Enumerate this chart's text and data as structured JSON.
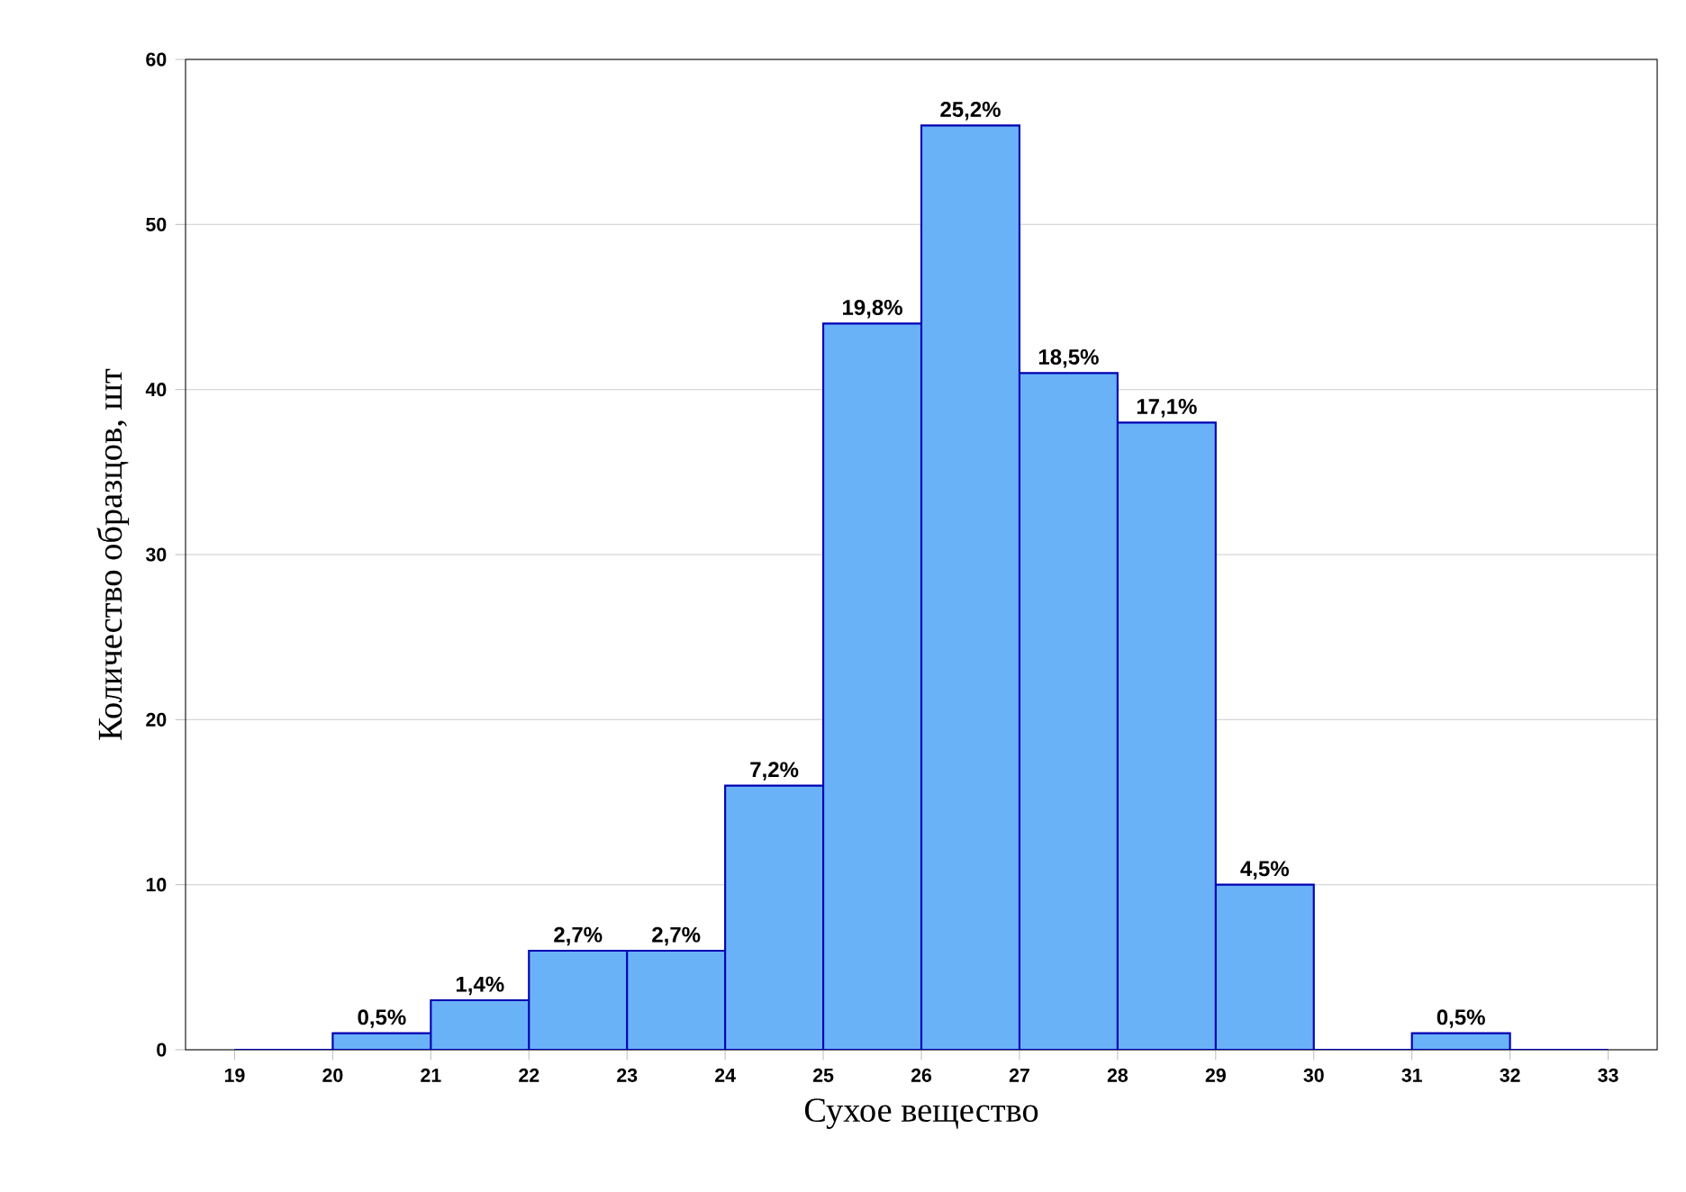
{
  "chart_data": {
    "type": "histogram",
    "xlabel": "Сухое вещество",
    "ylabel": "Количество образцов, шт",
    "bins": [
      19,
      20,
      21,
      22,
      23,
      24,
      25,
      26,
      27,
      28,
      29,
      30,
      31,
      32,
      33
    ],
    "values": [
      0,
      1,
      3,
      6,
      6,
      16,
      44,
      56,
      41,
      38,
      10,
      0,
      1,
      0
    ],
    "annotations": [
      {
        "text": "0,5%",
        "x": 20.5,
        "y": 1
      },
      {
        "text": "1,4%",
        "x": 21.5,
        "y": 3
      },
      {
        "text": "2,7%",
        "x": 22.5,
        "y": 6
      },
      {
        "text": "2,7%",
        "x": 23.5,
        "y": 6
      },
      {
        "text": "7,2%",
        "x": 24.5,
        "y": 16
      },
      {
        "text": "19,8%",
        "x": 25.5,
        "y": 44
      },
      {
        "text": "25,2%",
        "x": 26.5,
        "y": 56
      },
      {
        "text": "18,5%",
        "x": 27.5,
        "y": 41
      },
      {
        "text": "17,1%",
        "x": 28.5,
        "y": 38
      },
      {
        "text": "4,5%",
        "x": 29.5,
        "y": 10
      },
      {
        "text": "0,5%",
        "x": 31.5,
        "y": 1
      }
    ],
    "color": "#6ab2f8",
    "xlim": [
      18.5,
      33.5
    ],
    "xticks": [
      19,
      20,
      21,
      22,
      23,
      24,
      25,
      26,
      27,
      28,
      29,
      30,
      31,
      32,
      33
    ],
    "ylim": [
      0,
      60
    ],
    "yticks": [
      0,
      10,
      20,
      30,
      40,
      50,
      60
    ],
    "grid": "y"
  }
}
